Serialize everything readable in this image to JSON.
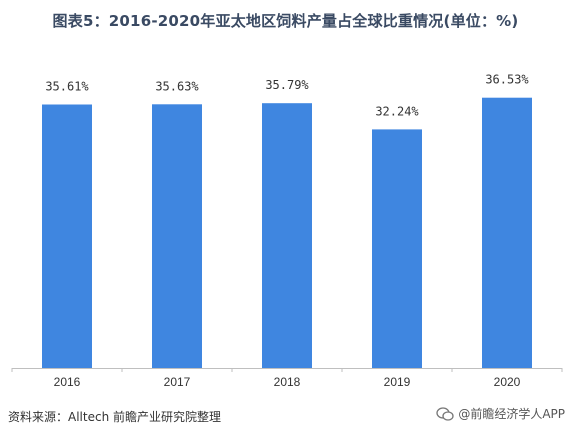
{
  "title": "图表5：2016-2020年亚太地区饲料产量占全球比重情况(单位：%)",
  "source": "资料来源：Alltech 前瞻产业研究院整理",
  "brand": "@前瞻经济学人APP",
  "colors": {
    "bar": "#3f86e0",
    "axis": "#bfbfbf",
    "label": "#333333"
  },
  "chart_data": {
    "type": "bar",
    "categories": [
      "2016",
      "2017",
      "2018",
      "2019",
      "2020"
    ],
    "values": [
      35.61,
      35.63,
      35.79,
      32.24,
      36.53
    ],
    "data_labels": [
      "35.61%",
      "35.63%",
      "35.79%",
      "32.24%",
      "36.53%"
    ],
    "title": "图表5：2016-2020年亚太地区饲料产量占全球比重情况(单位：%)",
    "xlabel": "",
    "ylabel": "",
    "ylim": [
      0,
      40
    ],
    "grid": false,
    "legend": "none"
  }
}
